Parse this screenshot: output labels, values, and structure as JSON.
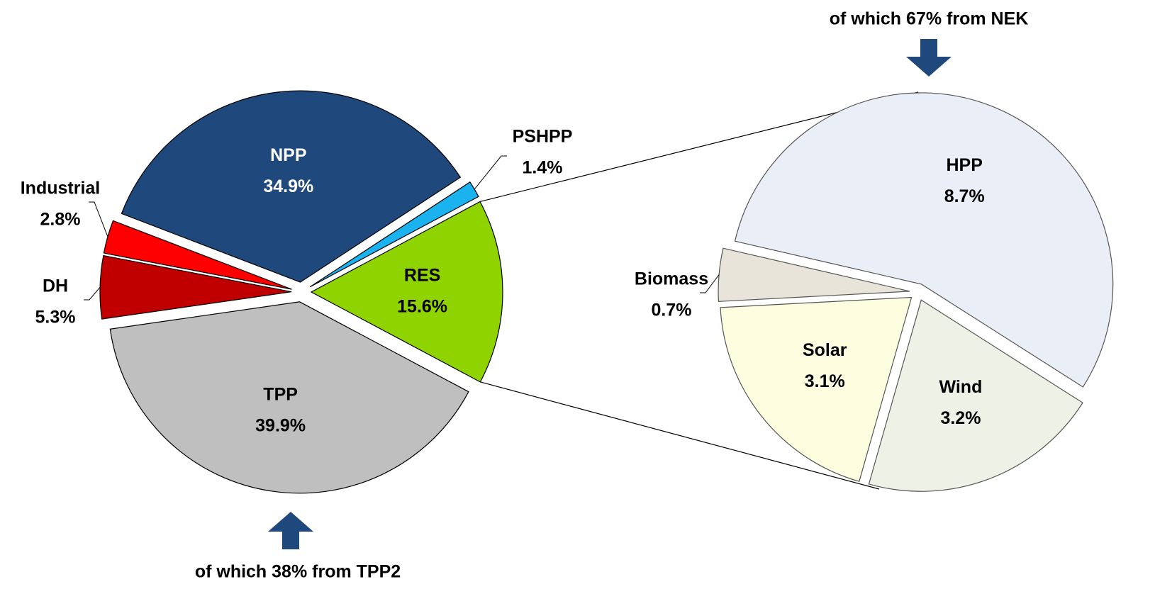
{
  "chart_data": [
    {
      "type": "pie",
      "categories": [
        "NPP",
        "PSHPP",
        "RES",
        "TPP",
        "DH",
        "Industrial"
      ],
      "values": [
        34.9,
        1.4,
        15.6,
        39.9,
        5.3,
        2.8
      ],
      "value_labels": [
        "34.9%",
        "1.4%",
        "15.6%",
        "39.9%",
        "5.3%",
        "2.8%"
      ],
      "colors": [
        "#1f497d",
        "#1ab2ef",
        "#8fd400",
        "#bfbfbf",
        "#c00000",
        "#ff0000"
      ],
      "annotation": "of which 38% from TPP2"
    },
    {
      "type": "pie",
      "categories": [
        "HPP",
        "Wind",
        "Solar",
        "Biomass"
      ],
      "values": [
        8.7,
        3.2,
        3.1,
        0.7
      ],
      "value_labels": [
        "8.7%",
        "3.2%",
        "3.1%",
        "0.7%"
      ],
      "colors": [
        "#e9eef7",
        "#eef1e6",
        "#fdfde0",
        "#e8e4da"
      ],
      "annotation": "of which 67% from NEK"
    }
  ]
}
